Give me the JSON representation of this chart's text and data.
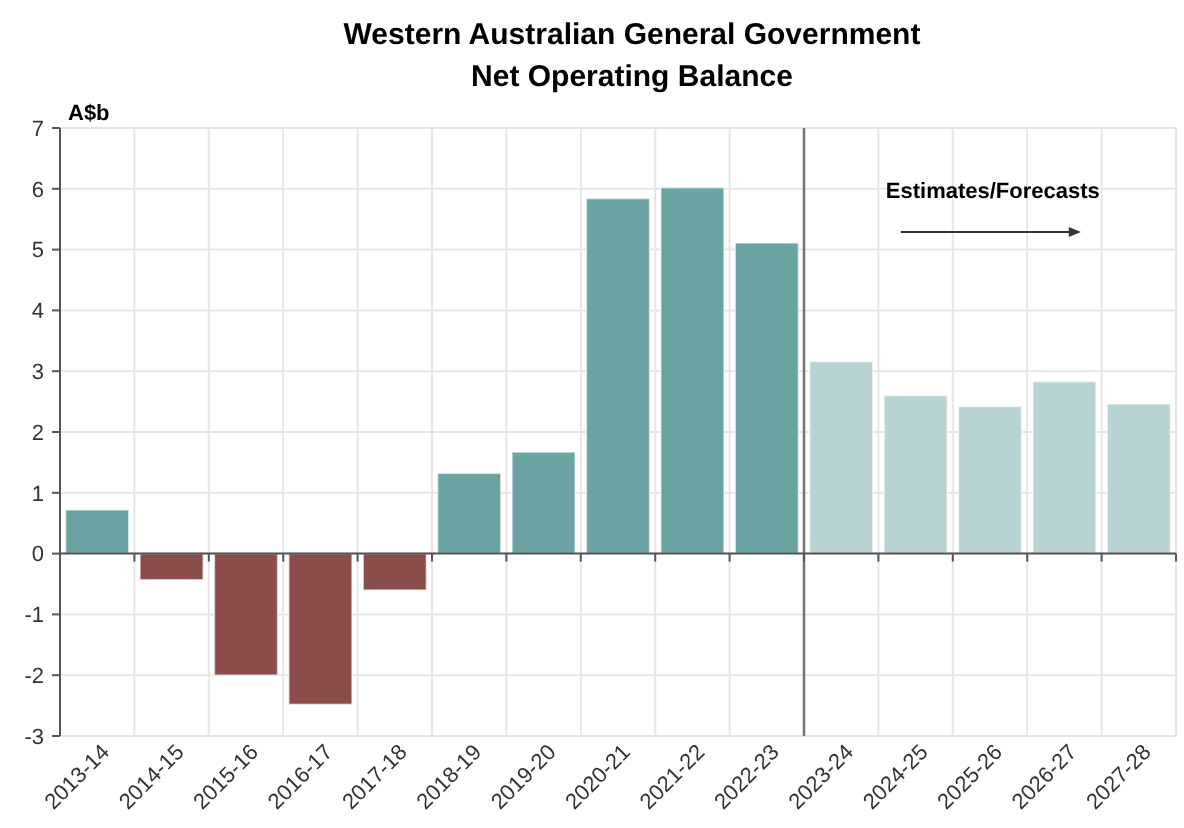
{
  "chart_data": {
    "type": "bar",
    "title": "Western Australian General Government\nNet Operating Balance",
    "ylabel": "A$b",
    "categories": [
      "2013-14",
      "2014-15",
      "2015-16",
      "2016-17",
      "2017-18",
      "2018-19",
      "2019-20",
      "2020-21",
      "2021-22",
      "2022-23",
      "2023-24",
      "2024-25",
      "2025-26",
      "2026-27",
      "2027-28"
    ],
    "values": [
      0.72,
      -0.43,
      -2.0,
      -2.48,
      -0.6,
      1.32,
      1.67,
      5.84,
      6.02,
      5.11,
      3.16,
      2.6,
      2.42,
      2.83,
      2.46
    ],
    "colors": [
      "#6aa3a1",
      "#8b4c4c",
      "#8b4c4c",
      "#8b4c4c",
      "#8b4c4c",
      "#6aa3a1",
      "#6aa3a1",
      "#6aa3a1",
      "#6aa3a1",
      "#6aa3a1",
      "#b7d3d3",
      "#b7d3d3",
      "#b7d3d3",
      "#b7d3d3",
      "#b7d3d3"
    ],
    "ylim": [
      -3,
      7
    ],
    "yticks": [
      -3,
      -2,
      -1,
      0,
      1,
      2,
      3,
      4,
      5,
      6,
      7
    ],
    "grid": true,
    "ref_lines": [
      {
        "axis": "x",
        "value": "2023-24",
        "color": "#777777"
      }
    ],
    "annotations": [
      "Estimates/Forecasts"
    ]
  }
}
